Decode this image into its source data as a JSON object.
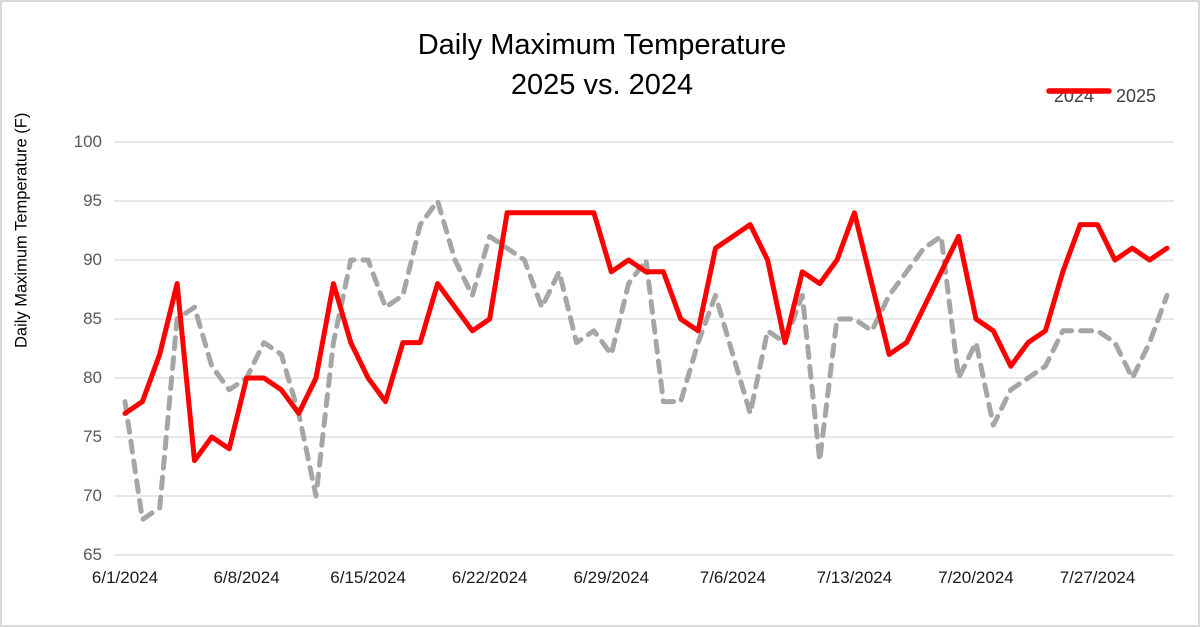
{
  "title": {
    "line1": "Daily Maximum Temperature",
    "line2": "2025 vs. 2024"
  },
  "y_axis_title": "Daily Maximum Temperature (F)",
  "legend": {
    "items": [
      {
        "label": "2024",
        "style": "dashed",
        "color": "#a6a6a6"
      },
      {
        "label": "2025",
        "style": "solid",
        "color": "#ff0000"
      }
    ],
    "position": "top-right"
  },
  "colors": {
    "series_2024": "#a6a6a6",
    "series_2025": "#ff0000",
    "gridline": "#d9d9d9",
    "frame_border": "#d9d9d9",
    "y_tick_text": "#595959",
    "x_tick_text": "#1a1a1a",
    "legend_text": "#404040",
    "title_text": "#000000"
  },
  "chart_data": {
    "type": "line",
    "title": "Daily Maximum Temperature",
    "subtitle": "2025 vs. 2024",
    "xlabel": "",
    "ylabel": "Daily Maximum Temperature (F)",
    "ylim": [
      65,
      100
    ],
    "y_tick_step": 5,
    "grid": true,
    "legend_position": "top-right",
    "x_tick_every": 7,
    "x_tick_labels": [
      "6/1/2024",
      "6/8/2024",
      "6/15/2024",
      "6/22/2024",
      "6/29/2024",
      "7/6/2024",
      "7/13/2024",
      "7/20/2024",
      "7/27/2024"
    ],
    "categories": [
      "6/1/2024",
      "6/2/2024",
      "6/3/2024",
      "6/4/2024",
      "6/5/2024",
      "6/6/2024",
      "6/7/2024",
      "6/8/2024",
      "6/9/2024",
      "6/10/2024",
      "6/11/2024",
      "6/12/2024",
      "6/13/2024",
      "6/14/2024",
      "6/15/2024",
      "6/16/2024",
      "6/17/2024",
      "6/18/2024",
      "6/19/2024",
      "6/20/2024",
      "6/21/2024",
      "6/22/2024",
      "6/23/2024",
      "6/24/2024",
      "6/25/2024",
      "6/26/2024",
      "6/27/2024",
      "6/28/2024",
      "6/29/2024",
      "6/30/2024",
      "7/1/2024",
      "7/2/2024",
      "7/3/2024",
      "7/4/2024",
      "7/5/2024",
      "7/6/2024",
      "7/7/2024",
      "7/8/2024",
      "7/9/2024",
      "7/10/2024",
      "7/11/2024",
      "7/12/2024",
      "7/13/2024",
      "7/14/2024",
      "7/15/2024",
      "7/16/2024",
      "7/17/2024",
      "7/18/2024",
      "7/19/2024",
      "7/20/2024",
      "7/21/2024",
      "7/22/2024",
      "7/23/2024",
      "7/24/2024",
      "7/25/2024",
      "7/26/2024",
      "7/27/2024",
      "7/28/2024",
      "7/29/2024",
      "7/30/2024",
      "7/31/2024"
    ],
    "series": [
      {
        "name": "2024",
        "color": "#a6a6a6",
        "style": "dashed",
        "values": [
          78,
          68,
          69,
          85,
          86,
          81,
          79,
          80,
          83,
          82,
          77,
          70,
          83,
          90,
          90,
          86,
          87,
          93,
          95,
          90,
          87,
          92,
          91,
          90,
          86,
          89,
          83,
          84,
          82,
          88,
          90,
          78,
          78,
          83,
          87,
          82,
          77,
          84,
          83,
          87,
          73,
          85,
          85,
          84,
          87,
          89,
          91,
          92,
          80,
          83,
          76,
          79,
          80,
          81,
          84,
          84,
          84,
          83,
          80,
          83,
          87
        ]
      },
      {
        "name": "2025",
        "color": "#ff0000",
        "style": "solid",
        "values": [
          77,
          78,
          82,
          88,
          73,
          75,
          74,
          80,
          80,
          79,
          77,
          80,
          88,
          83,
          80,
          78,
          83,
          83,
          88,
          86,
          84,
          85,
          94,
          94,
          94,
          94,
          94,
          94,
          89,
          90,
          89,
          89,
          85,
          84,
          91,
          92,
          93,
          90,
          83,
          89,
          88,
          90,
          94,
          88,
          82,
          83,
          86,
          89,
          92,
          85,
          84,
          81,
          83,
          84,
          89,
          93,
          93,
          90,
          91,
          90,
          91
        ]
      }
    ]
  }
}
